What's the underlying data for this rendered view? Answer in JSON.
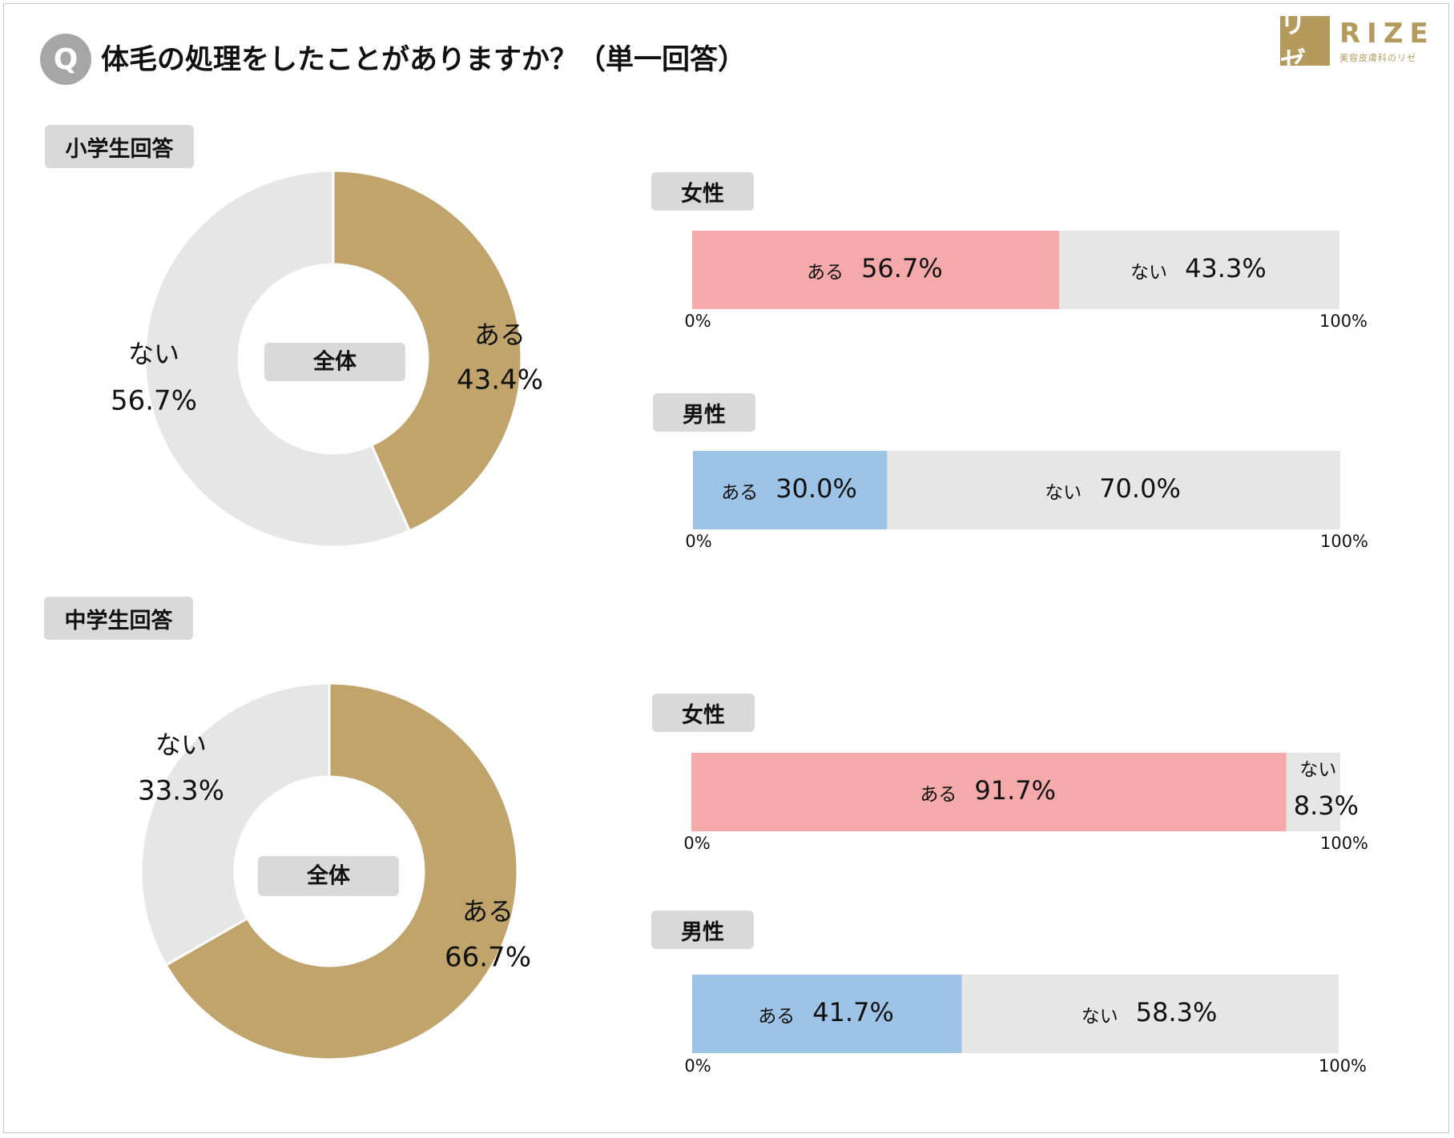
{
  "header": {
    "q_badge": "Q",
    "question": "体毛の処理をしたことがありますか？（単一回答）"
  },
  "logo": {
    "mark": "リゼ",
    "word": "RIZE",
    "sub": "美容皮膚科のリゼ"
  },
  "colors": {
    "aru": "#c0a46c",
    "nai": "#e6e6e6",
    "female_aru": "#f4aaaa",
    "male_aru": "#9dc3e6",
    "tag_bg": "#d9d9d9",
    "brand": "#b59a5e"
  },
  "sections": {
    "elementary": {
      "label": "小学生回答",
      "female_label": "女性",
      "male_label": "男性"
    },
    "junior": {
      "label": "中学生回答",
      "female_label": "女性",
      "male_label": "男性"
    }
  },
  "chart_data": [
    {
      "id": "elementary-overall",
      "type": "pie",
      "donut": true,
      "center_label": "全体",
      "slices": [
        {
          "label": "ある",
          "value": 43.4,
          "value_label": "43.4%",
          "color": "#c0a46c"
        },
        {
          "label": "ない",
          "value": 56.7,
          "value_label": "56.7%",
          "color": "#e6e6e6"
        }
      ]
    },
    {
      "id": "elementary-female",
      "type": "bar",
      "stacked": true,
      "horizontal": true,
      "group_label": "女性",
      "segments": [
        {
          "label": "ある",
          "value": 56.7,
          "value_label": "56.7%",
          "color": "#f4aaaa"
        },
        {
          "label": "ない",
          "value": 43.3,
          "value_label": "43.3%",
          "color": "#e6e6e6"
        }
      ],
      "axis_min_label": "0%",
      "axis_max_label": "100%",
      "xlim": [
        0,
        100
      ]
    },
    {
      "id": "elementary-male",
      "type": "bar",
      "stacked": true,
      "horizontal": true,
      "group_label": "男性",
      "segments": [
        {
          "label": "ある",
          "value": 30.0,
          "value_label": "30.0%",
          "color": "#9dc3e6"
        },
        {
          "label": "ない",
          "value": 70.0,
          "value_label": "70.0%",
          "color": "#e6e6e6"
        }
      ],
      "axis_min_label": "0%",
      "axis_max_label": "100%",
      "xlim": [
        0,
        100
      ]
    },
    {
      "id": "junior-overall",
      "type": "pie",
      "donut": true,
      "center_label": "全体",
      "slices": [
        {
          "label": "ある",
          "value": 66.7,
          "value_label": "66.7%",
          "color": "#c0a46c"
        },
        {
          "label": "ない",
          "value": 33.3,
          "value_label": "33.3%",
          "color": "#e6e6e6"
        }
      ]
    },
    {
      "id": "junior-female",
      "type": "bar",
      "stacked": true,
      "horizontal": true,
      "group_label": "女性",
      "segments": [
        {
          "label": "ある",
          "value": 91.7,
          "value_label": "91.7%",
          "color": "#f4aaaa"
        },
        {
          "label": "ない",
          "value": 8.3,
          "value_label": "8.3%",
          "color": "#e6e6e6"
        }
      ],
      "axis_min_label": "0%",
      "axis_max_label": "100%",
      "xlim": [
        0,
        100
      ]
    },
    {
      "id": "junior-male",
      "type": "bar",
      "stacked": true,
      "horizontal": true,
      "group_label": "男性",
      "segments": [
        {
          "label": "ある",
          "value": 41.7,
          "value_label": "41.7%",
          "color": "#9dc3e6"
        },
        {
          "label": "ない",
          "value": 58.3,
          "value_label": "58.3%",
          "color": "#e6e6e6"
        }
      ],
      "axis_min_label": "0%",
      "axis_max_label": "100%",
      "xlim": [
        0,
        100
      ]
    }
  ]
}
